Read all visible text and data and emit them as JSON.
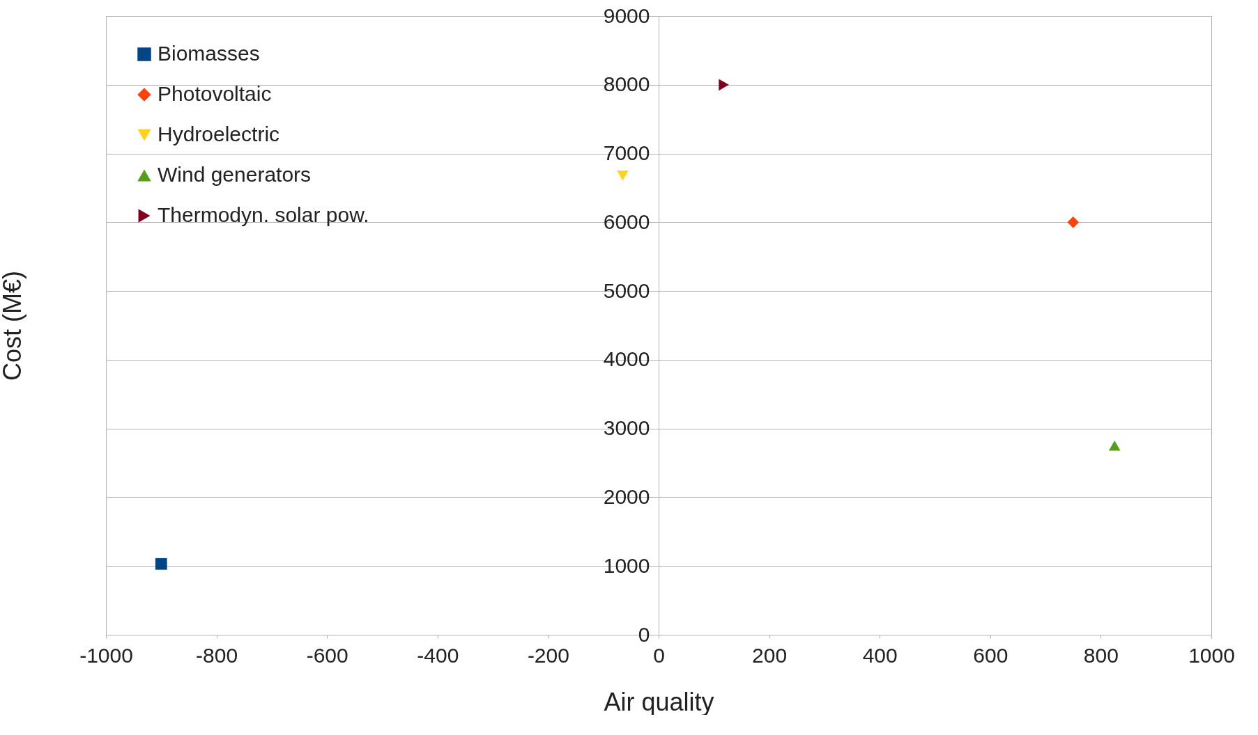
{
  "chart_data": {
    "type": "scatter",
    "xlabel": "Air quality",
    "ylabel": "Cost (M€)",
    "xlim": [
      -1000,
      1000
    ],
    "xticks": [
      -1000,
      -800,
      -600,
      -400,
      -200,
      0,
      200,
      400,
      600,
      800,
      1000
    ],
    "ylim": [
      0,
      9000
    ],
    "yticks": [
      0,
      1000,
      2000,
      3000,
      4000,
      5000,
      6000,
      7000,
      8000,
      9000
    ],
    "grid": "y",
    "legend": "top left",
    "series": [
      {
        "name": "Biomasses",
        "color": "#004586",
        "marker": "square",
        "x": [
          -900
        ],
        "values": [
          1030
        ]
      },
      {
        "name": "Photovoltaic",
        "color": "#ff420e",
        "marker": "diamond",
        "x": [
          750
        ],
        "values": [
          6000
        ]
      },
      {
        "name": "Hydroelectric",
        "color": "#ffd320",
        "marker": "triangle-down",
        "x": [
          -65
        ],
        "values": [
          6680
        ]
      },
      {
        "name": "Wind generators",
        "color": "#579d1c",
        "marker": "triangle",
        "x": [
          825
        ],
        "values": [
          2750
        ]
      },
      {
        "name": "Thermodyn. solar pow.",
        "color": "#7e0021",
        "marker": "triangle-right",
        "x": [
          118
        ],
        "values": [
          8000
        ]
      }
    ]
  }
}
